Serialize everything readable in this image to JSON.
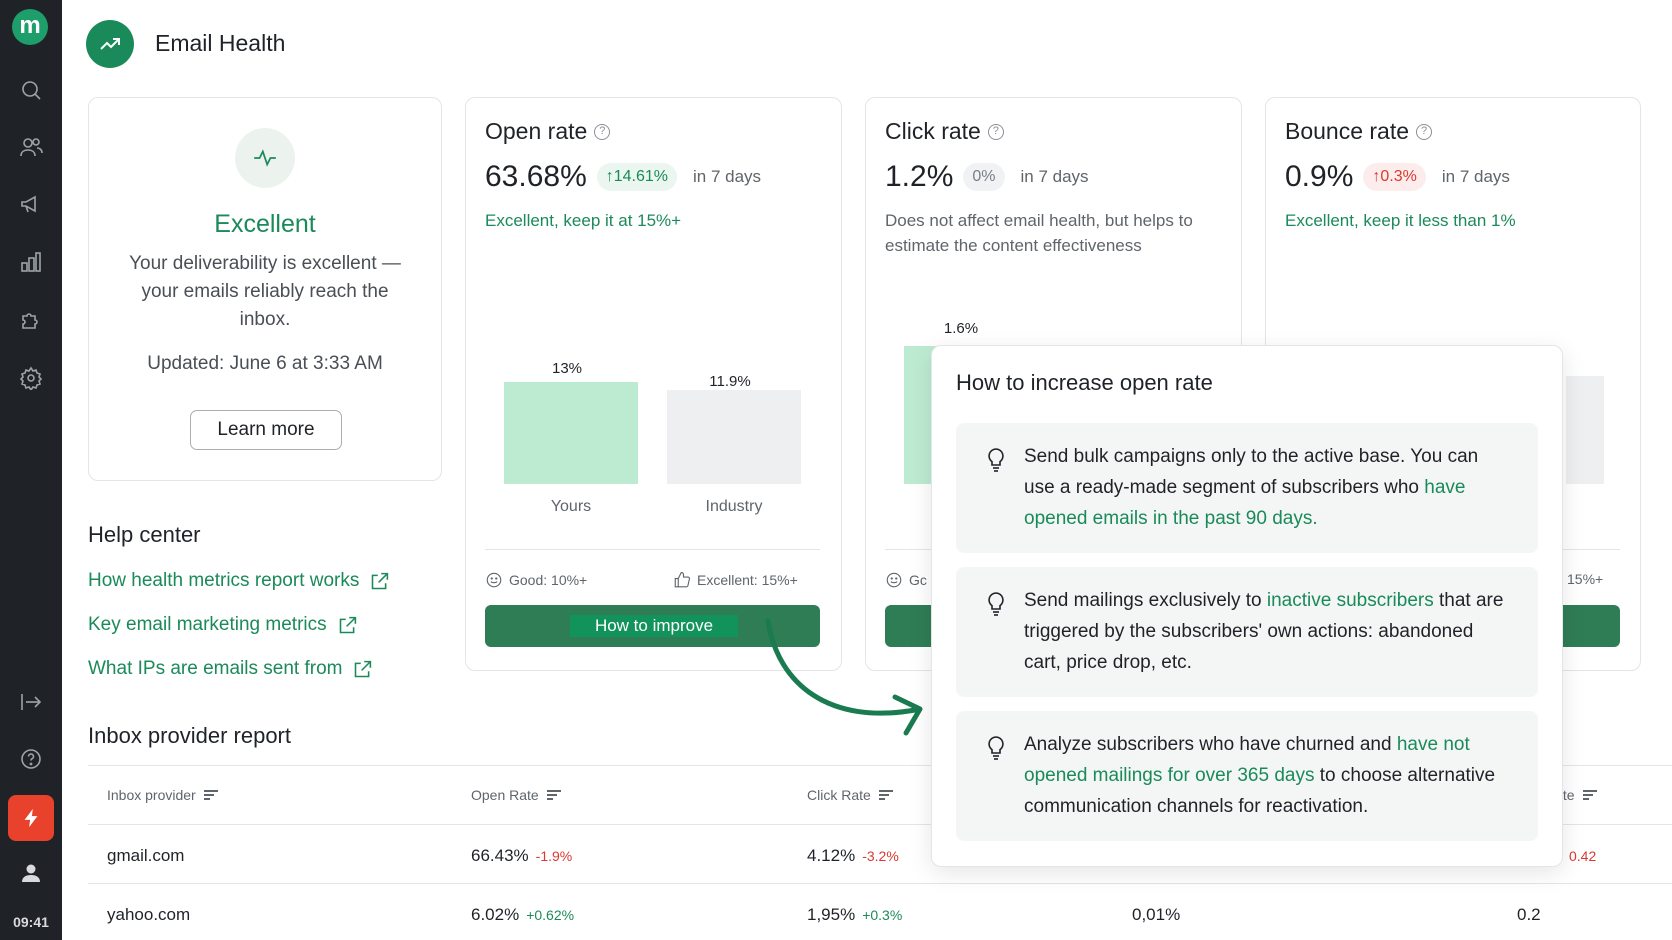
{
  "sidebar": {
    "logo_letter": "m",
    "icons": [
      "search-icon",
      "users-icon",
      "megaphone-icon",
      "bar-chart-icon",
      "puzzle-icon",
      "settings-icon",
      "exit-icon",
      "help-icon",
      "bolt-icon",
      "profile-icon"
    ],
    "time": "09:41"
  },
  "header": {
    "title": "Email Health"
  },
  "health": {
    "status": "Excellent",
    "description": "Your deliverability is excellent — your emails reliably reach the inbox.",
    "updated": "Updated: June 6 at 3:33 AM",
    "learn_more": "Learn more"
  },
  "open_rate": {
    "title": "Open rate",
    "value": "63.68%",
    "change": "↑14.61%",
    "period": "in 7 days",
    "note": "Excellent, keep it at 15%+",
    "chart": {
      "yours_label": "13%",
      "industry_label": "11.9%",
      "yours_cat": "Yours",
      "industry_cat": "Industry"
    },
    "legend_good": "Good: 10%+",
    "legend_excellent": "Excellent: 15%+",
    "button": "How to improve"
  },
  "click_rate": {
    "title": "Click rate",
    "value": "1.2%",
    "change": "0%",
    "period": "in 7 days",
    "note": "Does not affect email health, but helps to estimate the content effectiveness",
    "chart_label": "1.6%",
    "legend_partial": "Gc"
  },
  "bounce_rate": {
    "title": "Bounce rate",
    "value": "0.9%",
    "change": "↑0.3%",
    "period": "in 7 days",
    "note": "Excellent, keep it less than 1%",
    "legend_partial": "15%+"
  },
  "chart_data": [
    {
      "type": "bar",
      "categories": [
        "Yours",
        "Industry"
      ],
      "values": [
        13,
        11.9
      ],
      "title": "Open rate"
    }
  ],
  "help_center": {
    "title": "Help center",
    "links": [
      "How health metrics report works",
      "Key email marketing metrics",
      "What IPs are emails sent from"
    ]
  },
  "inbox_report": {
    "title": "Inbox provider report",
    "headers": [
      "Inbox provider",
      "Open Rate",
      "Click Rate",
      "Rate"
    ],
    "rows": [
      {
        "provider": "gmail.com",
        "open": "66.43%",
        "open_delta": "-1.9%",
        "click": "4.12%",
        "click_delta": "-3.2%",
        "col4": "",
        "rate": "0.42"
      },
      {
        "provider": "yahoo.com",
        "open": "6.02%",
        "open_delta": "+0.62%",
        "click": "1,95%",
        "click_delta": "+0.3%",
        "col4": "0,01%",
        "rate": "0.2"
      }
    ]
  },
  "popup": {
    "title": "How to increase open rate",
    "tips": [
      {
        "pre": "Send bulk campaigns only to the active base. You can use a ready-made segment of subscribers who ",
        "link": "have opened emails in the past 90 days.",
        "post": ""
      },
      {
        "pre": "Send mailings exclusively to ",
        "link": "inactive subscribers",
        "post": " that are triggered by the subscribers' own actions: abandoned cart, price drop, etc."
      },
      {
        "pre": "Analyze subscribers who have churned and ",
        "link": "have not opened mailings for over 365 days",
        "post": " to choose alternative communication channels for reactivation."
      }
    ]
  },
  "colors": {
    "brand": "#1b8a5a",
    "negative": "#d93a31",
    "sidebar": "#1f2328",
    "accent": "#e8412c"
  }
}
